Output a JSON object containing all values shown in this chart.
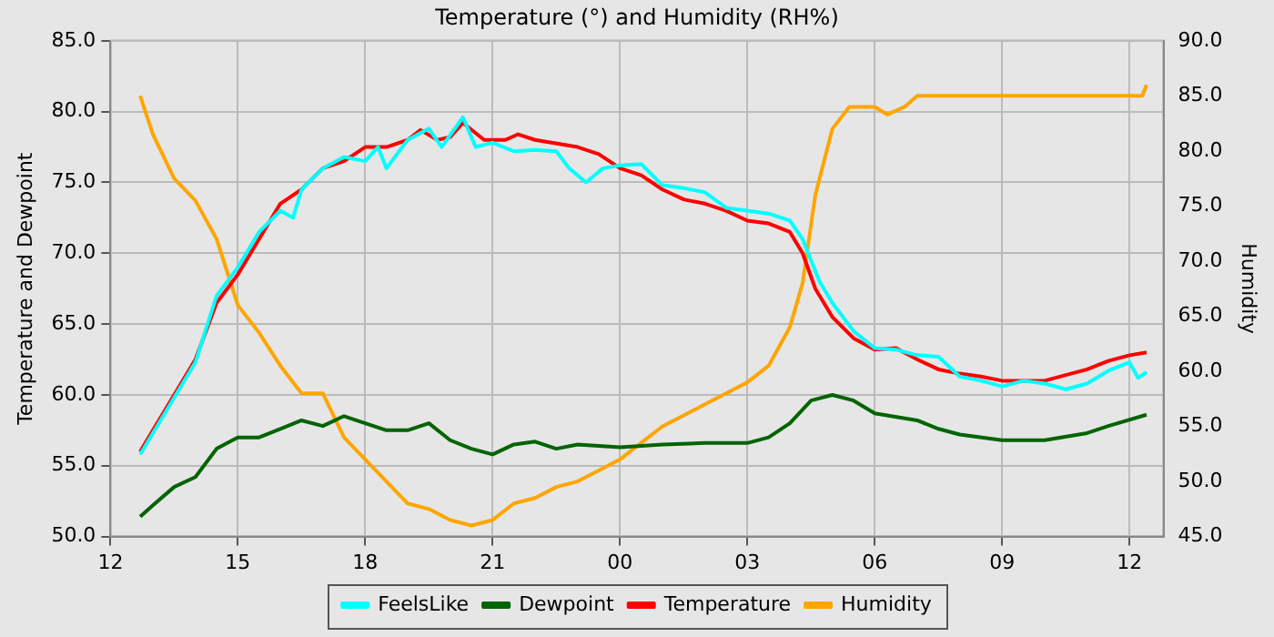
{
  "chart_data": {
    "type": "line",
    "title": "Temperature (°) and Humidity (RH%)",
    "ylabel": "Temperature and Dewpoint",
    "y2label": "Humidity",
    "xlim": [
      "--01-01T12:00",
      "--01-02T12:48"
    ],
    "xticks": [
      {
        "value": "--01-01T12:00",
        "label": "12"
      },
      {
        "value": "--01-01T15:00",
        "label": "15"
      },
      {
        "value": "--01-01T18:00",
        "label": "18"
      },
      {
        "value": "--01-01T21:00",
        "label": "21"
      },
      {
        "value": "--01-02T00:00",
        "label": "00"
      },
      {
        "value": "--01-02T03:00",
        "label": "03"
      },
      {
        "value": "--01-02T06:00",
        "label": "06"
      },
      {
        "value": "--01-02T09:00",
        "label": "09"
      },
      {
        "value": "--01-02T12:00",
        "label": "12"
      }
    ],
    "ylim": [
      50,
      85
    ],
    "yticks": [
      {
        "value": 50,
        "label": "50.0"
      },
      {
        "value": 55,
        "label": "55.0"
      },
      {
        "value": 60,
        "label": "60.0"
      },
      {
        "value": 65,
        "label": "65.0"
      },
      {
        "value": 70,
        "label": "70.0"
      },
      {
        "value": 75,
        "label": "75.0"
      },
      {
        "value": 80,
        "label": "80.0"
      },
      {
        "value": 85,
        "label": "85.0"
      }
    ],
    "y2lim": [
      45,
      90
    ],
    "y2ticks": [
      {
        "value": 45,
        "label": "45.0"
      },
      {
        "value": 50,
        "label": "50.0"
      },
      {
        "value": 55,
        "label": "55.0"
      },
      {
        "value": 60,
        "label": "60.0"
      },
      {
        "value": 65,
        "label": "65.0"
      },
      {
        "value": 70,
        "label": "70.0"
      },
      {
        "value": 75,
        "label": "75.0"
      },
      {
        "value": 80,
        "label": "80.0"
      },
      {
        "value": 85,
        "label": "85.0"
      },
      {
        "value": 90,
        "label": "90.0"
      }
    ],
    "grid": true,
    "legend": "bottom",
    "marker": "none",
    "line_style": "solid",
    "series": [
      {
        "name": "FeelsLike",
        "color": "#00ffff",
        "x": [
          "--01-01T12:42",
          "--01-01T13:00",
          "--01-01T13:30",
          "--01-01T14:00",
          "--01-01T14:30",
          "--01-01T15:00",
          "--01-01T15:30",
          "--01-01T16:00",
          "--01-01T16:18",
          "--01-01T16:30",
          "--01-01T17:00",
          "--01-01T17:30",
          "--01-01T18:00",
          "--01-01T18:18",
          "--01-01T18:30",
          "--01-01T19:00",
          "--01-01T19:30",
          "--01-01T19:48",
          "--01-01T20:18",
          "--01-01T20:36",
          "--01-01T21:00",
          "--01-01T21:30",
          "--01-01T22:00",
          "--01-01T22:30",
          "--01-01T22:48",
          "--01-01T23:12",
          "--01-01T23:36",
          "--01-02T00:00",
          "--01-02T00:30",
          "--01-02T01:00",
          "--01-02T01:30",
          "--01-02T02:00",
          "--01-02T02:30",
          "--01-02T03:00",
          "--01-02T03:30",
          "--01-02T04:00",
          "--01-02T04:18",
          "--01-02T04:42",
          "--01-02T05:00",
          "--01-02T05:30",
          "--01-02T06:00",
          "--01-02T06:30",
          "--01-02T07:00",
          "--01-02T07:30",
          "--01-02T08:00",
          "--01-02T08:30",
          "--01-02T09:00",
          "--01-02T09:30",
          "--01-02T10:00",
          "--01-02T10:30",
          "--01-02T11:00",
          "--01-02T11:30",
          "--01-02T12:00",
          "--01-02T12:12",
          "--01-02T12:24"
        ],
        "values": [
          55.8,
          57.3,
          59.8,
          62.3,
          67,
          69,
          71.5,
          73,
          72.5,
          74.5,
          76,
          76.8,
          76.5,
          77.5,
          76,
          78,
          78.8,
          77.5,
          79.6,
          77.5,
          77.8,
          77.2,
          77.3,
          77.2,
          76,
          75,
          76,
          76.2,
          76.3,
          74.8,
          74.6,
          74.3,
          73.2,
          73,
          72.8,
          72.3,
          71,
          68,
          66.5,
          64.5,
          63.3,
          63.2,
          62.8,
          62.7,
          61.3,
          61,
          60.6,
          61,
          60.8,
          60.4,
          60.8,
          61.7,
          62.3,
          61.2,
          61.6
        ]
      },
      {
        "name": "Dewpoint",
        "color": "#006400",
        "x": [
          "--01-01T12:42",
          "--01-01T13:00",
          "--01-01T13:30",
          "--01-01T14:00",
          "--01-01T14:30",
          "--01-01T15:00",
          "--01-01T15:30",
          "--01-01T16:00",
          "--01-01T16:30",
          "--01-01T17:00",
          "--01-01T17:30",
          "--01-01T18:00",
          "--01-01T18:30",
          "--01-01T19:00",
          "--01-01T19:30",
          "--01-01T20:00",
          "--01-01T20:30",
          "--01-01T21:00",
          "--01-01T21:30",
          "--01-01T22:00",
          "--01-01T22:30",
          "--01-01T23:00",
          "--01-02T00:00",
          "--01-02T01:00",
          "--01-02T02:00",
          "--01-02T03:00",
          "--01-02T03:30",
          "--01-02T04:00",
          "--01-02T04:30",
          "--01-02T05:00",
          "--01-02T05:30",
          "--01-02T06:00",
          "--01-02T07:00",
          "--01-02T07:30",
          "--01-02T08:00",
          "--01-02T09:00",
          "--01-02T10:00",
          "--01-02T11:00",
          "--01-02T11:30",
          "--01-02T12:24"
        ],
        "values": [
          51.4,
          52.2,
          53.5,
          54.2,
          56.2,
          57,
          57,
          57.6,
          58.2,
          57.8,
          58.5,
          58,
          57.5,
          57.5,
          58,
          56.8,
          56.2,
          55.8,
          56.5,
          56.7,
          56.2,
          56.5,
          56.3,
          56.5,
          56.6,
          56.6,
          57,
          58,
          59.6,
          60,
          59.6,
          58.7,
          58.2,
          57.6,
          57.2,
          56.8,
          56.8,
          57.3,
          57.8,
          58.6
        ]
      },
      {
        "name": "Temperature",
        "color": "#ff0000",
        "x": [
          "--01-01T12:42",
          "--01-01T13:00",
          "--01-01T13:30",
          "--01-01T14:00",
          "--01-01T14:30",
          "--01-01T15:00",
          "--01-01T15:30",
          "--01-01T16:00",
          "--01-01T16:30",
          "--01-01T17:00",
          "--01-01T17:30",
          "--01-01T18:00",
          "--01-01T18:30",
          "--01-01T19:00",
          "--01-01T19:18",
          "--01-01T19:42",
          "--01-01T20:00",
          "--01-01T20:18",
          "--01-01T20:48",
          "--01-01T21:18",
          "--01-01T21:36",
          "--01-01T22:00",
          "--01-01T23:00",
          "--01-01T23:30",
          "--01-02T00:00",
          "--01-02T00:30",
          "--01-02T01:00",
          "--01-02T01:30",
          "--01-02T02:00",
          "--01-02T02:30",
          "--01-02T03:00",
          "--01-02T03:30",
          "--01-02T04:00",
          "--01-02T04:18",
          "--01-02T04:36",
          "--01-02T05:00",
          "--01-02T05:30",
          "--01-02T06:00",
          "--01-02T06:30",
          "--01-02T07:00",
          "--01-02T07:30",
          "--01-02T08:00",
          "--01-02T08:30",
          "--01-02T09:00",
          "--01-02T10:00",
          "--01-02T10:30",
          "--01-02T11:00",
          "--01-02T11:30",
          "--01-02T12:00",
          "--01-02T12:24"
        ],
        "values": [
          56,
          57.5,
          60,
          62.5,
          66.5,
          68.5,
          71,
          73.5,
          74.5,
          76,
          76.5,
          77.5,
          77.5,
          78,
          78.7,
          78,
          78.2,
          79.2,
          78,
          78,
          78.4,
          78,
          77.5,
          77,
          76,
          75.5,
          74.5,
          73.8,
          73.5,
          73,
          72.3,
          72.1,
          71.5,
          70,
          67.5,
          65.5,
          64,
          63.2,
          63.3,
          62.5,
          61.8,
          61.5,
          61.3,
          61,
          61,
          61.4,
          61.8,
          62.4,
          62.8,
          63
        ]
      },
      {
        "name": "Humidity",
        "color": "#ffa500",
        "axis": "y2",
        "x": [
          "--01-01T12:42",
          "--01-01T13:00",
          "--01-01T13:30",
          "--01-01T14:00",
          "--01-01T14:30",
          "--01-01T15:00",
          "--01-01T15:30",
          "--01-01T16:00",
          "--01-01T16:30",
          "--01-01T17:00",
          "--01-01T17:30",
          "--01-01T18:00",
          "--01-01T18:30",
          "--01-01T19:00",
          "--01-01T19:30",
          "--01-01T20:00",
          "--01-01T20:30",
          "--01-01T21:00",
          "--01-01T21:30",
          "--01-01T22:00",
          "--01-01T22:30",
          "--01-01T23:00",
          "--01-01T23:30",
          "--01-02T00:00",
          "--01-02T00:30",
          "--01-02T01:00",
          "--01-02T01:30",
          "--01-02T02:00",
          "--01-02T02:30",
          "--01-02T03:00",
          "--01-02T03:30",
          "--01-02T04:00",
          "--01-02T04:18",
          "--01-02T04:36",
          "--01-02T05:00",
          "--01-02T05:24",
          "--01-02T06:00",
          "--01-02T06:18",
          "--01-02T06:42",
          "--01-02T07:00",
          "--01-02T12:18",
          "--01-02T12:24"
        ],
        "values": [
          85,
          81.5,
          77.5,
          75.5,
          72,
          66,
          63.5,
          60.5,
          58,
          58,
          54,
          52,
          50,
          48,
          47.5,
          46.5,
          46,
          46.5,
          48,
          48.5,
          49.5,
          50,
          51,
          52,
          53.5,
          55,
          56,
          57,
          58,
          59,
          60.5,
          64,
          68,
          76,
          82,
          84,
          84,
          83.3,
          84,
          85,
          85,
          86
        ]
      }
    ]
  }
}
